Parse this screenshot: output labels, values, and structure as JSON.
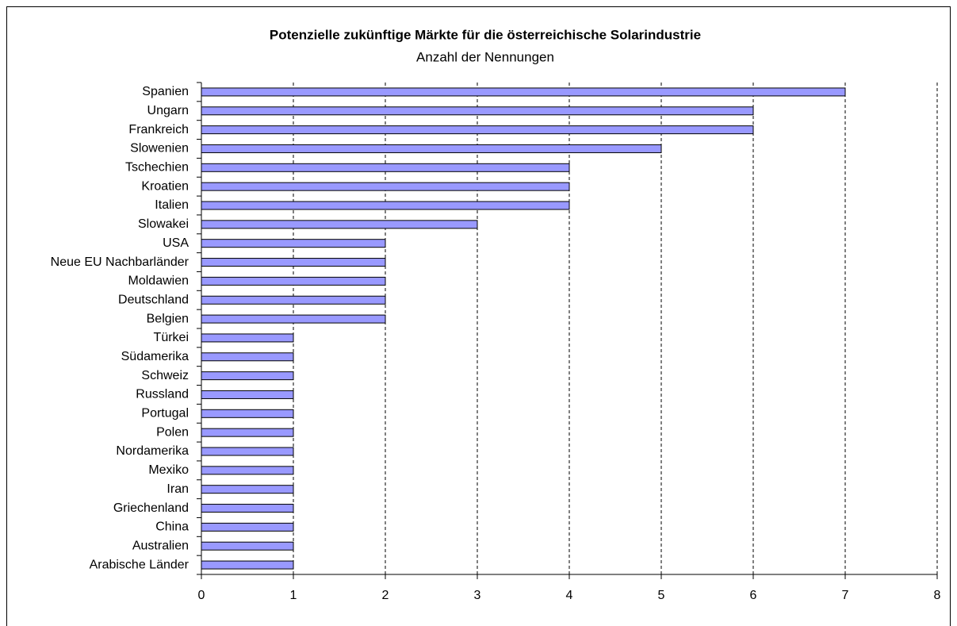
{
  "chart_data": {
    "type": "barh",
    "title": "Potenzielle zukünftige Märkte für die österreichische Solarindustrie",
    "subtitle": "Anzahl der Nennungen",
    "categories": [
      "Spanien",
      "Ungarn",
      "Frankreich",
      "Slowenien",
      "Tschechien",
      "Kroatien",
      "Italien",
      "Slowakei",
      "USA",
      "Neue EU Nachbarländer",
      "Moldawien",
      "Deutschland",
      "Belgien",
      "Türkei",
      "Südamerika",
      "Schweiz",
      "Russland",
      "Portugal",
      "Polen",
      "Nordamerika",
      "Mexiko",
      "Iran",
      "Griechenland",
      "China",
      "Australien",
      "Arabische Länder"
    ],
    "values": [
      7,
      6,
      6,
      5,
      4,
      4,
      4,
      3,
      2,
      2,
      2,
      2,
      2,
      1,
      1,
      1,
      1,
      1,
      1,
      1,
      1,
      1,
      1,
      1,
      1,
      1
    ],
    "color": "#9999ff",
    "xlim": [
      0,
      8
    ],
    "xticks": [
      0,
      1,
      2,
      3,
      4,
      5,
      6,
      7,
      8
    ],
    "grid": true
  }
}
